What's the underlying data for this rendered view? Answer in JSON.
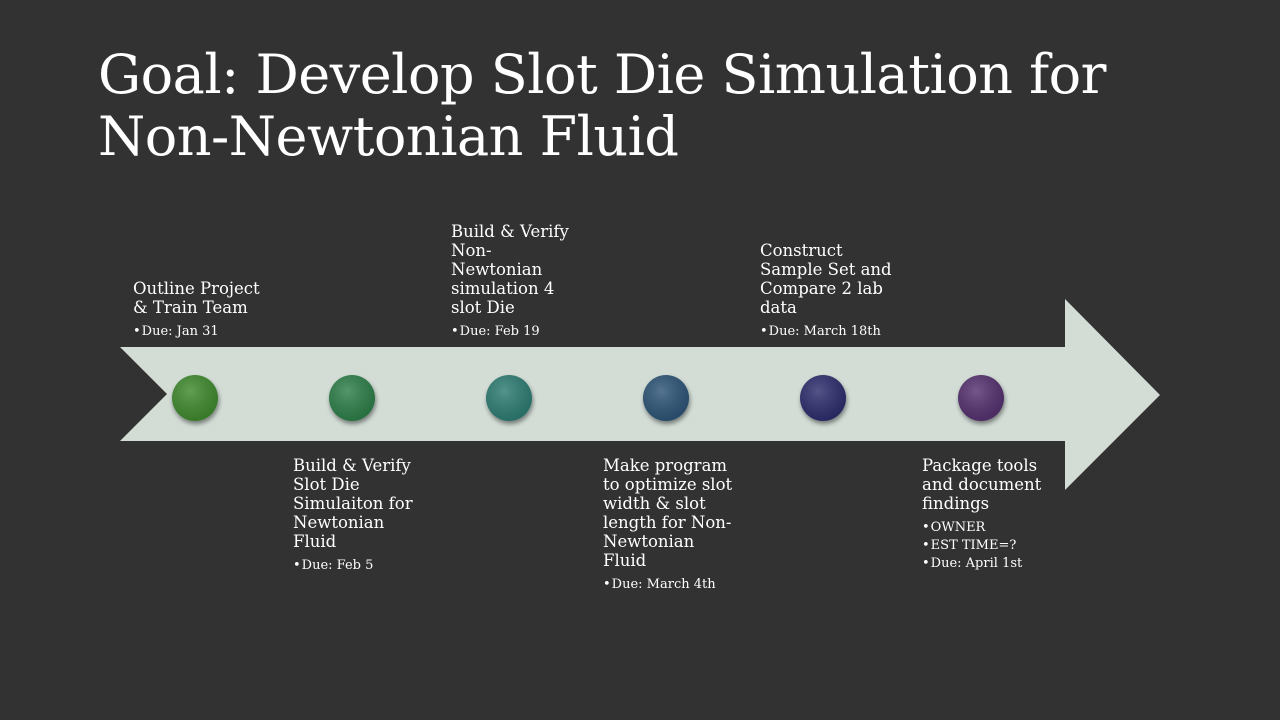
{
  "title": {
    "line1": "Goal: Develop Slot Die Simulation for",
    "line2": "Non-Newtonian Fluid"
  },
  "colors": {
    "background": "#323232",
    "arrow": "#d3ddd6",
    "dots": [
      "#3f8a2f",
      "#2e7f4a",
      "#2f7d73",
      "#2e5577",
      "#2e2f6e",
      "#57336f"
    ]
  },
  "milestones": [
    {
      "heading": "Outline Project\n& Train Team",
      "details": [
        "Due: Jan 31"
      ]
    },
    {
      "heading": "Build & Verify\nSlot Die\nSimulaiton for\nNewtonian\nFluid",
      "details": [
        "Due: Feb 5"
      ]
    },
    {
      "heading": "Build & Verify\nNon-\nNewtonian\nsimulation 4\nslot Die",
      "details": [
        "Due: Feb 19"
      ]
    },
    {
      "heading": "Make program\nto optimize slot\nwidth & slot\nlength for Non-\nNewtonian\nFluid",
      "details": [
        "Due: March 4th"
      ]
    },
    {
      "heading": "Construct\nSample Set and\nCompare 2 lab\ndata",
      "details": [
        "Due: March 18th"
      ]
    },
    {
      "heading": "Package tools\nand document\nfindings",
      "details": [
        "OWNER",
        "EST TIME=?",
        "Due: April 1st"
      ]
    }
  ]
}
